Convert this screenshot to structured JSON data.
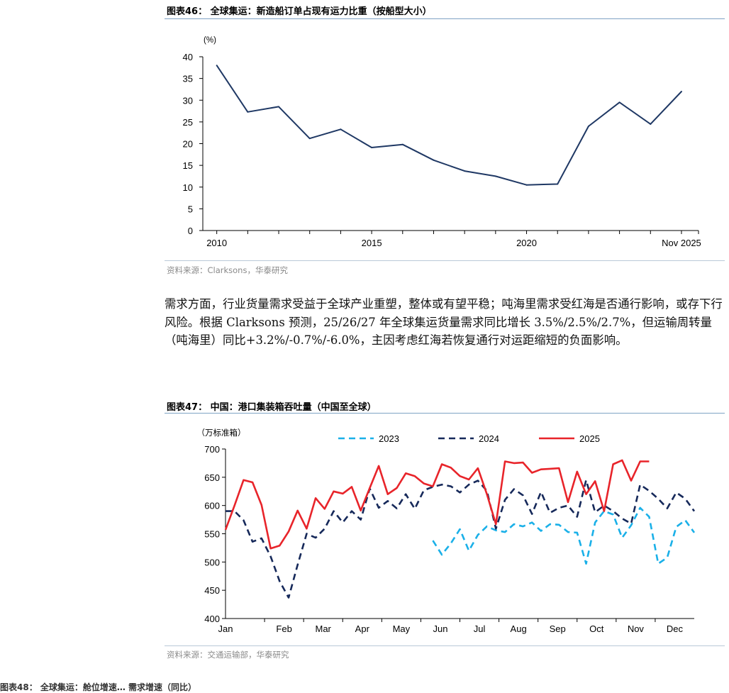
{
  "figure46": {
    "title": "图表46： 全球集运：新造船订单占现有运力比重（按船型大小）",
    "source": "资料来源：Clarksons，华泰研究"
  },
  "paragraph": {
    "text": "需求方面，行业货量需求受益于全球产业重塑，整体或有望平稳；吨海里需求受红海是否通行影响，或存下行风险。根据 Clarksons 预测，25/26/27 年全球集运货量需求同比增长 3.5%/2.5%/2.7%，但运输周转量（吨海里）同比+3.2%/-0.7%/-6.0%，主因考虑红海若恢复通行对运距缩短的负面影响。"
  },
  "figure47": {
    "title": "图表47： 中国：港口集装箱吞吐量（中国至全球）",
    "source": "资料来源：交通运输部，华泰研究"
  },
  "bottom_cut": {
    "text": "图表48： 全球集运：舱位增速… 需求增速（同比）"
  },
  "colors": {
    "line46": "#1f3864",
    "s2023": "#1ab0e8",
    "s2024": "#16295a",
    "s2025": "#e8242a"
  },
  "chart_data": [
    {
      "type": "line",
      "title": "全球集运：新造船订单占现有运力比重（按船型大小）",
      "ylabel": "(%)",
      "xlabel": "",
      "ylim": [
        0,
        40
      ],
      "yticks": [
        "0",
        "5",
        "10",
        "15",
        "20",
        "25",
        "30",
        "35",
        "40"
      ],
      "xticks": [
        {
          "label": "2010",
          "x": 2010
        },
        {
          "label": "2015",
          "x": 2015
        },
        {
          "label": "2020",
          "x": 2020
        },
        {
          "label": "Nov 2025",
          "x": 2025
        }
      ],
      "x": [
        2010,
        2011,
        2012,
        2013,
        2014,
        2015,
        2016,
        2017,
        2018,
        2019,
        2020,
        2021,
        2022,
        2023,
        2024,
        2025
      ],
      "series": [
        {
          "name": "新造船订单占现有运力比重",
          "values": [
            38.0,
            27.3,
            28.5,
            21.2,
            23.3,
            19.1,
            19.8,
            16.2,
            13.7,
            12.5,
            10.5,
            10.7,
            24.0,
            29.5,
            24.5,
            32.0
          ]
        }
      ]
    },
    {
      "type": "line",
      "title": "中国：港口集装箱吞吐量（中国至全球）",
      "ylabel": "（万标准箱）",
      "xlabel": "",
      "ylim": [
        400,
        700
      ],
      "yticks": [
        "400",
        "450",
        "500",
        "550",
        "600",
        "650",
        "700"
      ],
      "categories": [
        "Jan",
        "Feb",
        "Mar",
        "Apr",
        "May",
        "Jun",
        "Jul",
        "Aug",
        "Sep",
        "Oct",
        "Nov",
        "Dec"
      ],
      "x_range": [
        1,
        53
      ],
      "series": [
        {
          "name": "2023",
          "style": "dashed",
          "x": [
            24,
            25,
            26,
            27,
            28,
            29,
            30,
            31,
            32,
            33,
            34,
            35,
            36,
            37,
            38,
            39,
            40,
            41,
            42,
            43,
            44,
            45,
            46,
            47,
            48,
            49,
            50,
            51,
            52,
            53
          ],
          "values": [
            538,
            513,
            533,
            558,
            520,
            548,
            563,
            556,
            553,
            567,
            563,
            570,
            555,
            567,
            566,
            553,
            552,
            497,
            570,
            590,
            584,
            543,
            565,
            596,
            580,
            497,
            508,
            562,
            574,
            552
          ]
        },
        {
          "name": "2024",
          "style": "dashed",
          "x": [
            1,
            2,
            3,
            4,
            5,
            6,
            7,
            8,
            9,
            10,
            11,
            12,
            13,
            14,
            15,
            16,
            17,
            18,
            19,
            20,
            21,
            22,
            23,
            24,
            25,
            26,
            27,
            28,
            29,
            30,
            31,
            32,
            33,
            34,
            35,
            36,
            37,
            38,
            39,
            40,
            41,
            42,
            43,
            44,
            45,
            46,
            47,
            48,
            49,
            50,
            51,
            52,
            53
          ],
          "values": [
            590,
            590,
            574,
            536,
            542,
            510,
            466,
            437,
            495,
            550,
            543,
            559,
            590,
            570,
            590,
            575,
            630,
            596,
            608,
            595,
            620,
            594,
            627,
            633,
            637,
            634,
            623,
            637,
            644,
            626,
            559,
            610,
            629,
            618,
            585,
            624,
            587,
            596,
            600,
            580,
            645,
            588,
            600,
            590,
            577,
            568,
            637,
            626,
            612,
            595,
            623,
            612,
            590
          ]
        },
        {
          "name": "2025",
          "style": "solid",
          "x": [
            1,
            2,
            3,
            4,
            5,
            6,
            7,
            8,
            9,
            10,
            11,
            12,
            13,
            14,
            15,
            16,
            17,
            18,
            19,
            20,
            21,
            22,
            23,
            24,
            25,
            26,
            27,
            28,
            29,
            30,
            31,
            32,
            33,
            34,
            35,
            36,
            37,
            38,
            39,
            40,
            41,
            42,
            43,
            44,
            45,
            46,
            47,
            48
          ],
          "values": [
            557,
            600,
            645,
            641,
            601,
            524,
            529,
            554,
            591,
            559,
            613,
            594,
            625,
            621,
            633,
            591,
            631,
            670,
            620,
            631,
            657,
            652,
            639,
            634,
            673,
            667,
            652,
            646,
            666,
            620,
            567,
            678,
            675,
            676,
            658,
            664,
            665,
            666,
            606,
            660,
            620,
            643,
            590,
            673,
            680,
            644,
            678,
            678
          ]
        }
      ]
    }
  ]
}
